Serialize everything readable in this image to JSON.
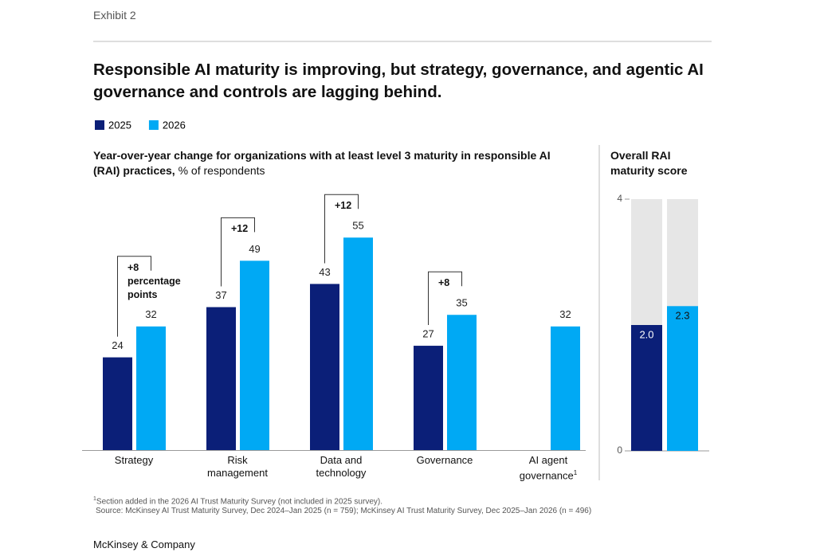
{
  "header": {
    "exhibit": "Exhibit 2",
    "title": "Responsible AI maturity is improving, but strategy, governance, and agentic AI governance and controls are lagging behind."
  },
  "chart_data": [
    {
      "type": "grouped_bar",
      "title": "Year-over-year change for organizations with at least level 3 maturity in responsible AI (RAI) practices,",
      "unit": "% of respondents",
      "categories": [
        "Strategy",
        "Risk management",
        "Data and technology",
        "Governance",
        "AI agent governance"
      ],
      "category_footnotes": [
        null,
        null,
        null,
        null,
        "1"
      ],
      "series": [
        {
          "name": "2025",
          "color": "#0b1f78",
          "values": [
            24,
            37,
            43,
            27,
            null
          ]
        },
        {
          "name": "2026",
          "color": "#00a9f4",
          "values": [
            32,
            49,
            55,
            35,
            32
          ]
        }
      ],
      "annotations": [
        "+8 percentage points",
        "+12",
        "+12",
        "+8"
      ]
    },
    {
      "type": "score_bar",
      "title": "Overall RAI maturity score",
      "values": [
        2,
        2.3
      ],
      "value_labels": [
        "2.0",
        "2.3"
      ],
      "colors": [
        "#0b1f78",
        "#00a9f4"
      ],
      "track_color": "#e6e6e6",
      "ylim": [
        0,
        4
      ],
      "yticks": [
        0,
        4
      ]
    }
  ],
  "footnotes": [
    {
      "marker": "1",
      "text": "Section added in the 2026 AI Trust Maturity Survey (not included in 2025 survey)."
    }
  ],
  "source": "Source: McKinsey AI Trust Maturity Survey, Dec 2024–Jan 2025 (n = 759); McKinsey AI Trust Maturity Survey, Dec 2025–Jan 2026 (n = 496)",
  "footer": "McKinsey & Company"
}
